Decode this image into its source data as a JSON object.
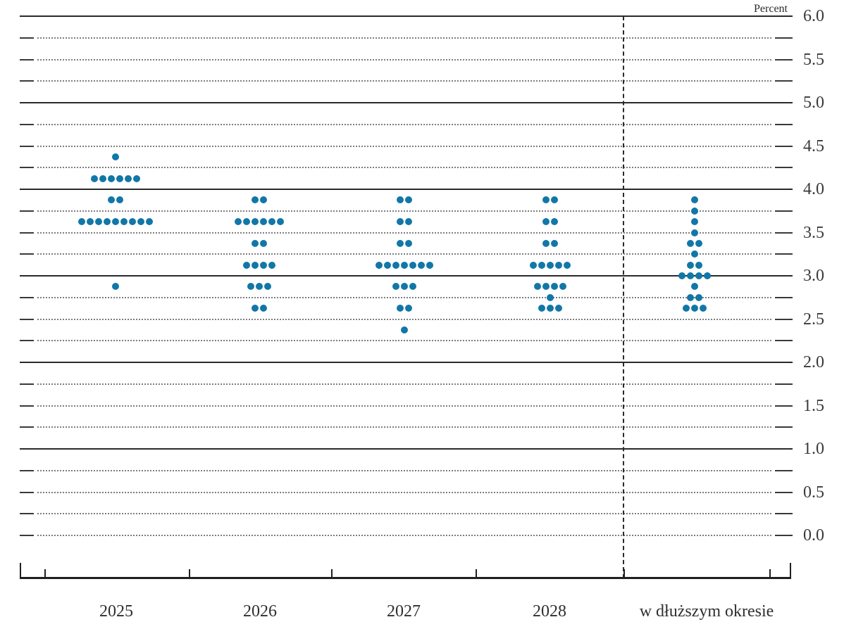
{
  "chart_data": {
    "type": "scatter",
    "subtype": "fomc-dot-plot",
    "title": "",
    "ylabel": "Percent",
    "xlabel": "",
    "ylim": [
      0.0,
      6.0
    ],
    "ytick_minor_step": 0.25,
    "ytick_label_step": 0.5,
    "ytick_labels": [
      "6.0",
      "5.5",
      "5.0",
      "4.5",
      "4.0",
      "3.5",
      "3.0",
      "2.5",
      "2.0",
      "1.5",
      "1.0",
      "0.5",
      "0.0"
    ],
    "solid_gridlines_at": [
      6.0,
      5.0,
      4.0,
      3.0,
      2.0,
      1.0
    ],
    "grid": "dotted minor lines every 0.25, solid at integers, right-side tick labels",
    "legend": "none",
    "separator_note": "dashed vertical line separates projection years from longer-run column",
    "categories": [
      "2025",
      "2026",
      "2027",
      "2028",
      "w dłuższym okresie"
    ],
    "series": [
      {
        "name": "2025",
        "dots": [
          {
            "v": 4.375,
            "n": 1
          },
          {
            "v": 4.125,
            "n": 6
          },
          {
            "v": 3.875,
            "n": 2
          },
          {
            "v": 3.625,
            "n": 9
          },
          {
            "v": 2.875,
            "n": 1
          }
        ]
      },
      {
        "name": "2026",
        "dots": [
          {
            "v": 3.875,
            "n": 2
          },
          {
            "v": 3.625,
            "n": 6
          },
          {
            "v": 3.375,
            "n": 2
          },
          {
            "v": 3.125,
            "n": 4
          },
          {
            "v": 2.875,
            "n": 3
          },
          {
            "v": 2.625,
            "n": 2
          }
        ]
      },
      {
        "name": "2027",
        "dots": [
          {
            "v": 3.875,
            "n": 2
          },
          {
            "v": 3.625,
            "n": 2
          },
          {
            "v": 3.375,
            "n": 2
          },
          {
            "v": 3.125,
            "n": 7
          },
          {
            "v": 2.875,
            "n": 3
          },
          {
            "v": 2.625,
            "n": 2
          },
          {
            "v": 2.375,
            "n": 1
          }
        ]
      },
      {
        "name": "2028",
        "dots": [
          {
            "v": 3.875,
            "n": 2
          },
          {
            "v": 3.625,
            "n": 2
          },
          {
            "v": 3.375,
            "n": 2
          },
          {
            "v": 3.125,
            "n": 5
          },
          {
            "v": 2.875,
            "n": 4
          },
          {
            "v": 2.75,
            "n": 1
          },
          {
            "v": 2.625,
            "n": 3
          }
        ]
      },
      {
        "name": "w dłuższym okresie",
        "dots": [
          {
            "v": 3.875,
            "n": 1
          },
          {
            "v": 3.75,
            "n": 1
          },
          {
            "v": 3.625,
            "n": 1
          },
          {
            "v": 3.5,
            "n": 1
          },
          {
            "v": 3.375,
            "n": 2
          },
          {
            "v": 3.25,
            "n": 1
          },
          {
            "v": 3.125,
            "n": 2
          },
          {
            "v": 3.0,
            "n": 4
          },
          {
            "v": 2.875,
            "n": 1
          },
          {
            "v": 2.75,
            "n": 2
          },
          {
            "v": 2.625,
            "n": 3
          }
        ]
      }
    ],
    "participants_per_column": 19,
    "colors": {
      "dot": "#1177a8",
      "solid_gridline": "#2a2a2a",
      "dotted_gridline": "#7d7d7d",
      "axis": "#1f1f1f",
      "text": "#2f2f2f",
      "background": "#ffffff"
    }
  }
}
